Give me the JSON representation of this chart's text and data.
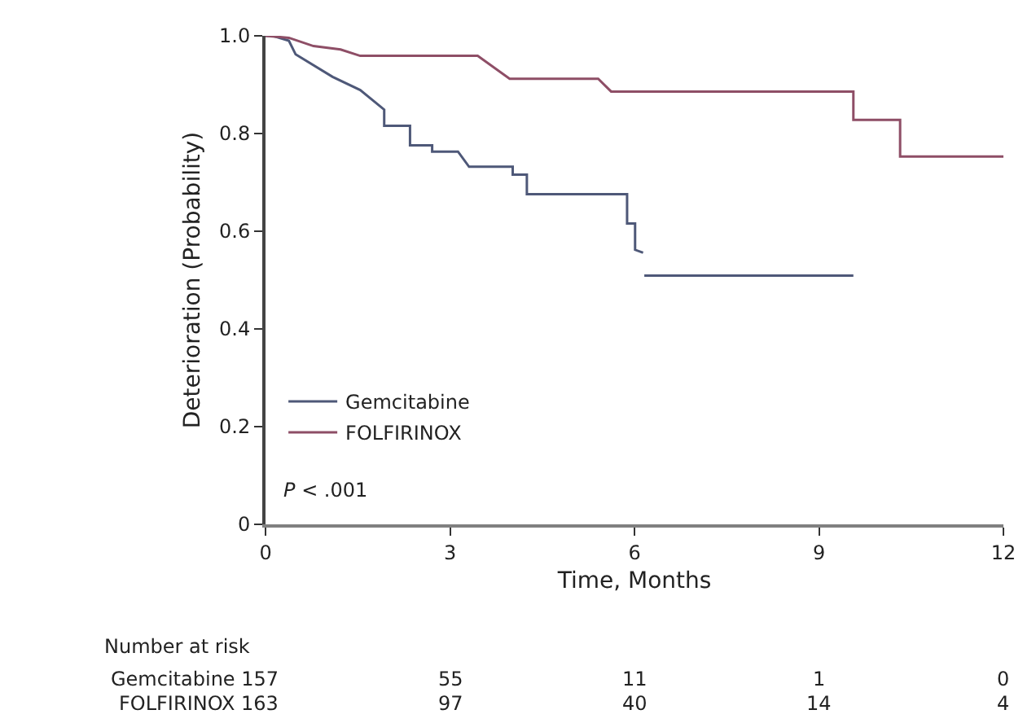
{
  "chart_data": {
    "type": "line",
    "xlabel": "Time, Months",
    "ylabel": "Deterioration (Probability)",
    "xlim": [
      0,
      12
    ],
    "xticks": [
      0,
      3,
      6,
      9,
      12
    ],
    "ylim": [
      0,
      1
    ],
    "yticks": [
      0,
      {
        "value": 0.2,
        "label": "0.2"
      },
      {
        "value": 0.4,
        "label": "0.4"
      },
      {
        "value": 0.6,
        "label": "0.6"
      },
      {
        "value": 0.8,
        "label": "0.8"
      },
      {
        "value": 1,
        "label": "1.0"
      }
    ],
    "legend": "bottom left",
    "marker": "none",
    "line_style": "solid",
    "series": [
      {
        "name": "Gemcitabine",
        "color": "#4e5878",
        "x": [
          0,
          0.12,
          0.38,
          0.49,
          1.09,
          1.54,
          1.93,
          1.93,
          2.35,
          2.35,
          2.71,
          2.71,
          3.13,
          3.31,
          4.02,
          4.02,
          4.25,
          4.25,
          5.88,
          5.88,
          6.01,
          6.01,
          6.14,
          null,
          6.16,
          9.56
        ],
        "values": [
          1,
          1,
          0.99,
          0.962,
          0.916,
          0.889,
          0.849,
          0.816,
          0.816,
          0.776,
          0.776,
          0.763,
          0.763,
          0.732,
          0.732,
          0.716,
          0.716,
          0.676,
          0.676,
          0.616,
          0.616,
          0.562,
          0.556,
          null,
          0.509,
          0.509
        ]
      },
      {
        "name": "FOLFIRINOX",
        "color": "#8e4e66",
        "x": [
          0,
          0.38,
          0.78,
          1.22,
          1.54,
          3.45,
          3.97,
          5.41,
          5.62,
          9.56,
          9.56,
          10.32,
          10.32,
          12
        ],
        "values": [
          1,
          0.996,
          0.979,
          0.972,
          0.959,
          0.959,
          0.912,
          0.912,
          0.886,
          0.886,
          0.828,
          0.828,
          0.753,
          0.753
        ]
      }
    ],
    "annotations": [
      "P < .001",
      "Number at risk",
      "Gemcitabine",
      "157",
      "55",
      "11",
      "1",
      "0",
      "FOLFIRINOX",
      "163",
      "97",
      "40",
      "14",
      "4"
    ]
  }
}
